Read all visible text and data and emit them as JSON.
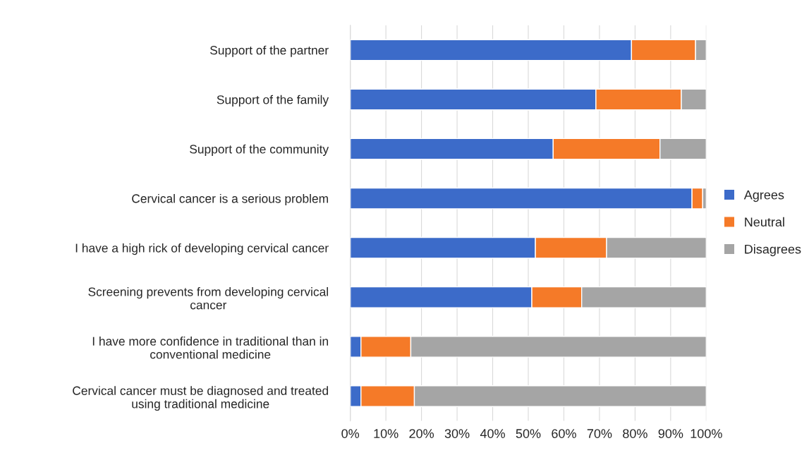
{
  "chart_data": {
    "type": "bar",
    "orientation": "horizontal",
    "stacked": true,
    "categories": [
      "Support of the partner",
      "Support of the family",
      "Support of the community",
      "Cervical cancer is a serious problem",
      "I have a high rick of developing cervical cancer",
      "Screening prevents from developing cervical cancer",
      "I have more confidence in traditional than in conventional medicine",
      "Cervical cancer must be diagnosed and treated using traditional medicine"
    ],
    "series": [
      {
        "name": "Agrees",
        "color": "#3c6bc9",
        "values": [
          79,
          69,
          57,
          96,
          52,
          51,
          3,
          3
        ]
      },
      {
        "name": "Neutral",
        "color": "#f57a28",
        "values": [
          18,
          24,
          30,
          3,
          20,
          14,
          14,
          15
        ]
      },
      {
        "name": "Disagrees",
        "color": "#a5a5a5",
        "values": [
          3,
          7,
          13,
          1,
          28,
          35,
          83,
          82
        ]
      }
    ],
    "xlim": [
      0,
      100
    ],
    "xticks": [
      {
        "value": 0,
        "label": "0%"
      },
      {
        "value": 10,
        "label": "10%"
      },
      {
        "value": 20,
        "label": "20%"
      },
      {
        "value": 30,
        "label": "30%"
      },
      {
        "value": 40,
        "label": "40%"
      },
      {
        "value": 50,
        "label": "50%"
      },
      {
        "value": 60,
        "label": "60%"
      },
      {
        "value": 70,
        "label": "70%"
      },
      {
        "value": 80,
        "label": "80%"
      },
      {
        "value": 90,
        "label": "90%"
      },
      {
        "value": 100,
        "label": "100%"
      }
    ],
    "grid": "x",
    "legend": "right"
  }
}
